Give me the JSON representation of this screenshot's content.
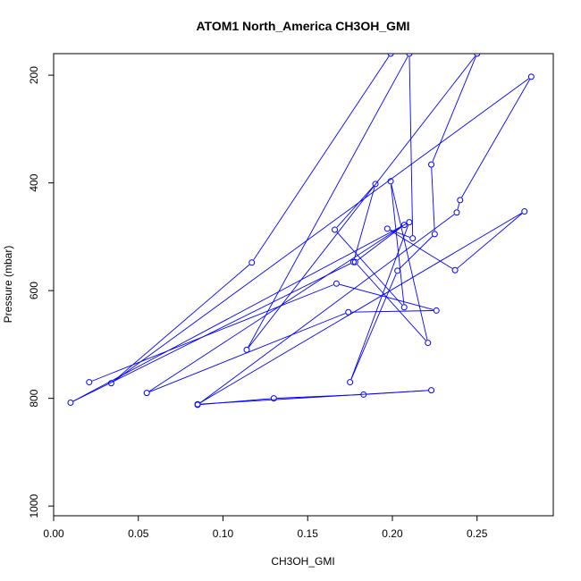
{
  "chart_data": {
    "type": "line",
    "title": "ATOM1 North_America CH3OH_GMI",
    "xlabel": "CH3OH_GMI",
    "ylabel": "Pressure (mbar)",
    "xlim": [
      0.0,
      0.295
    ],
    "ylim": [
      1018,
      160
    ],
    "y_reversed": true,
    "x_ticks": [
      0.0,
      0.05,
      0.1,
      0.15,
      0.2,
      0.25
    ],
    "x_tick_labels": [
      "0.00",
      "0.05",
      "0.10",
      "0.15",
      "0.20",
      "0.25"
    ],
    "y_ticks": [
      200,
      400,
      600,
      800,
      1000
    ],
    "y_tick_labels": [
      "200",
      "400",
      "600",
      "800",
      "1000"
    ],
    "grid": false,
    "colors": {
      "series": "#0000ff",
      "axis": "#000000"
    },
    "series": [
      {
        "points": [
          {
            "x": 0.021,
            "y": 770
          },
          {
            "x": 0.167,
            "y": 587
          },
          {
            "x": 0.226,
            "y": 637
          },
          {
            "x": 0.174,
            "y": 640
          },
          {
            "x": 0.055,
            "y": 790
          },
          {
            "x": 0.207,
            "y": 478
          },
          {
            "x": 0.178,
            "y": 547
          },
          {
            "x": 0.221,
            "y": 697
          },
          {
            "x": 0.199,
            "y": 397
          },
          {
            "x": 0.207,
            "y": 631
          },
          {
            "x": 0.166,
            "y": 487
          },
          {
            "x": 0.19,
            "y": 402
          },
          {
            "x": 0.177,
            "y": 547
          },
          {
            "x": 0.01,
            "y": 808
          },
          {
            "x": 0.21,
            "y": 473
          },
          {
            "x": 0.175,
            "y": 770
          },
          {
            "x": 0.203,
            "y": 563
          },
          {
            "x": 0.225,
            "y": 495
          },
          {
            "x": 0.223,
            "y": 366
          },
          {
            "x": 0.25,
            "y": 160
          },
          {
            "x": 0.114,
            "y": 710
          },
          {
            "x": 0.21,
            "y": 160
          },
          {
            "x": 0.212,
            "y": 503
          },
          {
            "x": 0.197,
            "y": 485
          },
          {
            "x": 0.237,
            "y": 562
          },
          {
            "x": 0.278,
            "y": 453
          },
          {
            "x": 0.085,
            "y": 811
          },
          {
            "x": 0.223,
            "y": 785
          },
          {
            "x": 0.183,
            "y": 793
          },
          {
            "x": 0.13,
            "y": 800
          },
          {
            "x": 0.085,
            "y": 812
          },
          {
            "x": 0.238,
            "y": 455
          },
          {
            "x": 0.24,
            "y": 432
          },
          {
            "x": 0.282,
            "y": 203
          },
          {
            "x": 0.034,
            "y": 772
          },
          {
            "x": 0.117,
            "y": 548
          },
          {
            "x": 0.199,
            "y": 160
          }
        ]
      }
    ]
  }
}
